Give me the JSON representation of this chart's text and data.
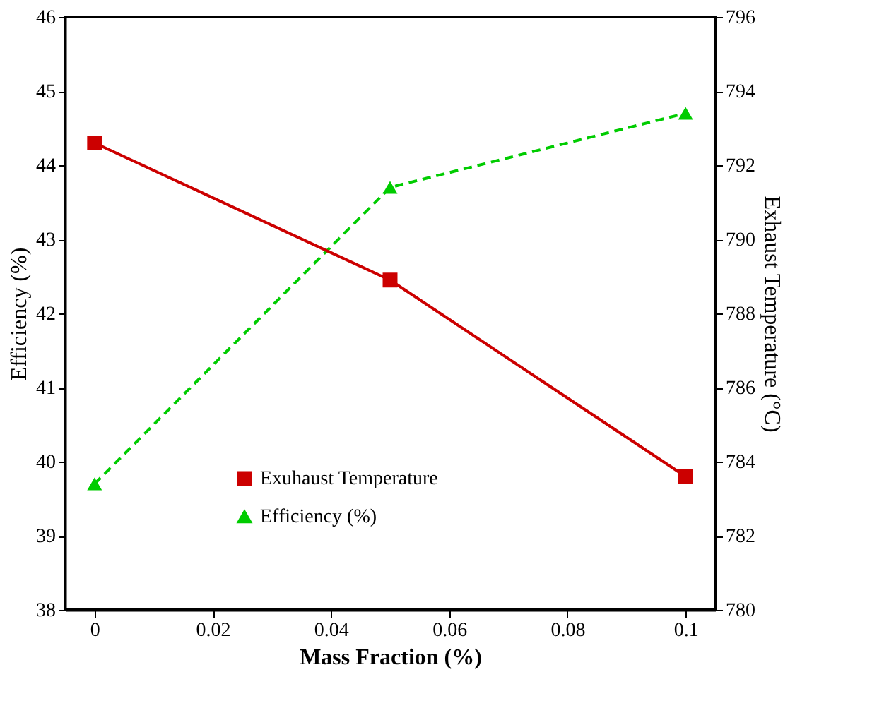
{
  "chart_data": {
    "type": "line",
    "xlabel": "Mass Fraction (%)",
    "ylabel": "Efficiency (%)",
    "y2label": "Exhaust Temperature (°C)",
    "x": [
      0,
      0.05,
      0.1
    ],
    "series": [
      {
        "name": "Exuhaust Temperature",
        "color": "#cc0000",
        "values": [
          792.6,
          788.9,
          783.6
        ],
        "axis": "y2",
        "marker": "square",
        "line_style": "solid"
      },
      {
        "name": "Efficiency (%)",
        "color": "#00cc00",
        "values": [
          39.7,
          43.7,
          44.7
        ],
        "marker": "triangle",
        "line_style": "dashed"
      }
    ],
    "xlim": [
      -0.005,
      0.105
    ],
    "xticks": [
      0,
      0.02,
      0.04,
      0.06,
      0.08,
      0.1
    ],
    "ylim": [
      38,
      46
    ],
    "yticks": [
      38,
      39,
      40,
      41,
      42,
      43,
      44,
      45,
      46
    ],
    "y2lim": [
      780,
      796
    ],
    "y2ticks": [
      780,
      782,
      784,
      786,
      788,
      790,
      792,
      794,
      796
    ],
    "grid": false,
    "legend": "bottom"
  }
}
